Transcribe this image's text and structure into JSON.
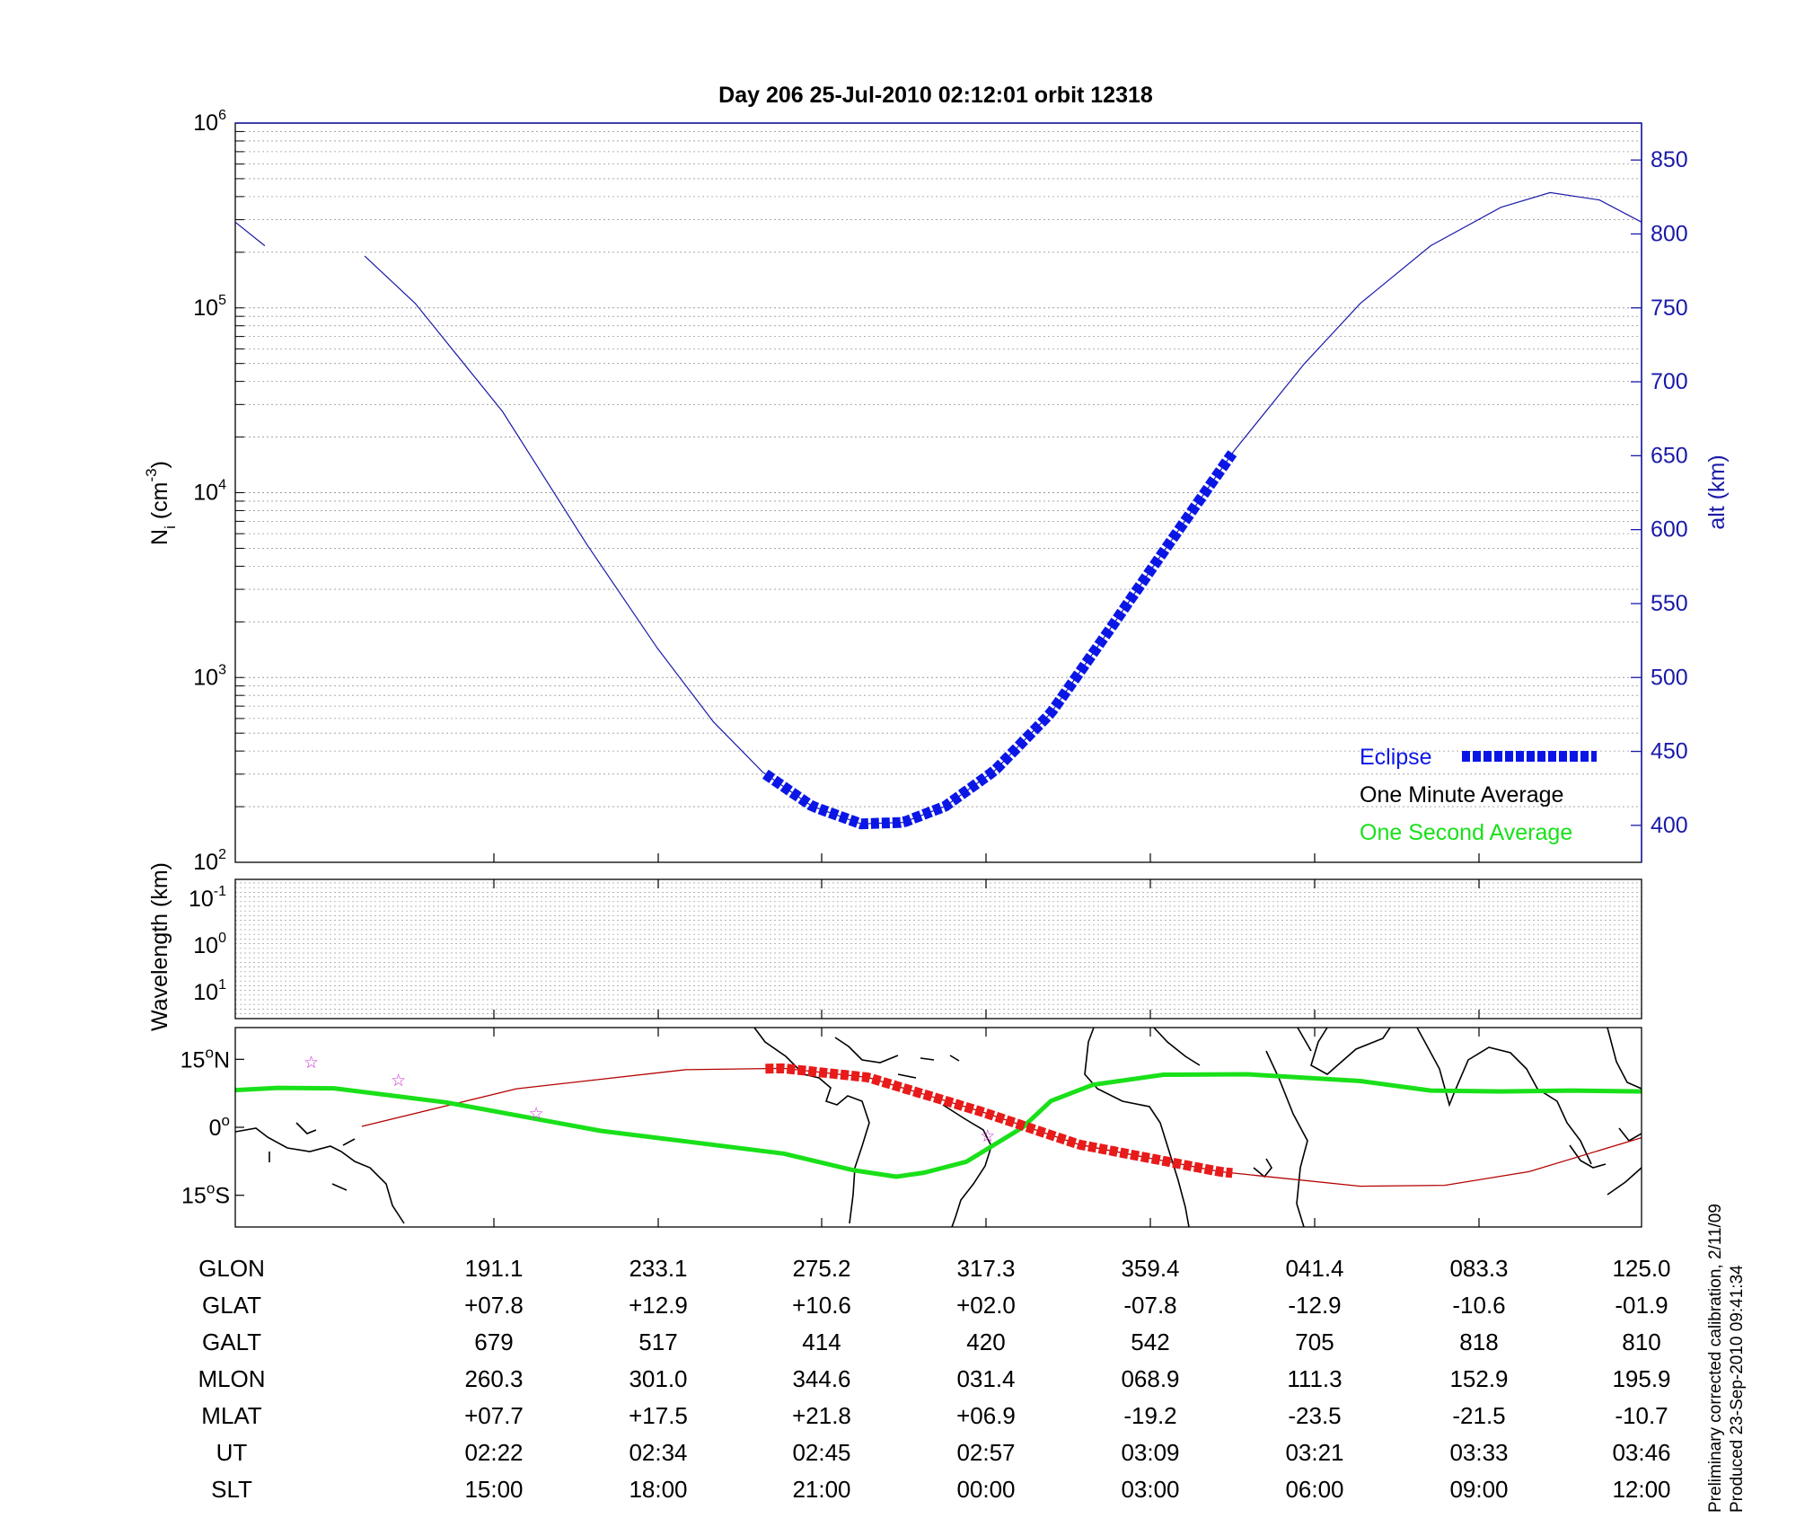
{
  "title": "Day 206  25-Jul-2010 02:12:01   orbit 12318",
  "colors": {
    "altitude": "#1a1aa8",
    "eclipse": "#0a16e6",
    "one_second": "#19e019",
    "orbit_track": "#b40000",
    "eclipse_track": "#e81a1a",
    "stars": "#cc33cc",
    "grid": "#9a9a9a"
  },
  "chart_data": [
    {
      "type": "line",
      "panel": "density",
      "ylabel": {
        "base": "N",
        "sub": "i",
        "unit": " (cm",
        "exp": "-3",
        "close": ")"
      },
      "yscale": "log",
      "ylim": [
        100,
        1000000
      ],
      "yticks": [
        {
          "base": "10",
          "exp": "2"
        },
        {
          "base": "10",
          "exp": "3"
        },
        {
          "base": "10",
          "exp": "4"
        },
        {
          "base": "10",
          "exp": "5"
        },
        {
          "base": "10",
          "exp": "6"
        }
      ],
      "right_axis": {
        "label": "alt (km)",
        "ylim": [
          375,
          875
        ],
        "ticks": [
          "400",
          "450",
          "500",
          "550",
          "600",
          "650",
          "700",
          "750",
          "800",
          "850"
        ]
      },
      "x": {
        "min": 0,
        "max": 1
      },
      "series": [
        {
          "name": "altitude",
          "style": "thin line",
          "points": [
            [
              0.0,
              808
            ],
            [
              0.021,
              792
            ],
            [
              0.092,
              785
            ],
            [
              0.128,
              753
            ],
            [
              0.19,
              680
            ],
            [
              0.25,
              590
            ],
            [
              0.3,
              520
            ],
            [
              0.34,
              470
            ],
            [
              0.375,
              436
            ],
            [
              0.41,
              413
            ],
            [
              0.445,
              401
            ],
            [
              0.475,
              402
            ],
            [
              0.505,
              413
            ],
            [
              0.54,
              437
            ],
            [
              0.58,
              476
            ],
            [
              0.62,
              530
            ],
            [
              0.66,
              585
            ],
            [
              0.71,
              653
            ],
            [
              0.76,
              712
            ],
            [
              0.8,
              753
            ],
            [
              0.85,
              792
            ],
            [
              0.9,
              818
            ],
            [
              0.935,
              828
            ],
            [
              0.97,
              823
            ],
            [
              1.0,
              808
            ]
          ]
        },
        {
          "name": "Eclipse",
          "style": "thick dashed",
          "x_range": [
            0.377,
            0.709
          ]
        },
        {
          "name": "One Minute Average",
          "values": []
        },
        {
          "name": "One Second Average",
          "values": []
        }
      ],
      "legend": {
        "position": "bottom-right",
        "entries": [
          "Eclipse",
          "One Minute Average",
          "One Second Average"
        ]
      }
    },
    {
      "type": "line",
      "panel": "wavelength",
      "ylabel": "Wavelength (km)",
      "yscale": "log",
      "yticks": [
        {
          "base": "10",
          "exp": "-1"
        },
        {
          "base": "10",
          "exp": "0"
        },
        {
          "base": "10",
          "exp": "1"
        }
      ],
      "series": []
    },
    {
      "type": "line",
      "panel": "map",
      "lat_range": [
        -22,
        22
      ],
      "yticks": [
        {
          "deg": "15",
          "hem": "N"
        },
        {
          "deg": "0",
          "hem": ""
        },
        {
          "deg": "15",
          "hem": "S"
        }
      ],
      "series": [
        {
          "name": "orbit_track",
          "points": [
            [
              0.09,
              0.2
            ],
            [
              0.2,
              8.5
            ],
            [
              0.32,
              12.7
            ],
            [
              0.39,
              13.0
            ],
            [
              0.45,
              11.0
            ],
            [
              0.53,
              3.5
            ],
            [
              0.6,
              -3.8
            ],
            [
              0.7,
              -9.8
            ],
            [
              0.8,
              -13.0
            ],
            [
              0.86,
              -12.8
            ],
            [
              0.92,
              -9.8
            ],
            [
              1.0,
              -2.3
            ]
          ]
        },
        {
          "name": "eclipse_track",
          "style": "thick dashed",
          "x_range": [
            0.377,
            0.709
          ]
        },
        {
          "name": "One Second Average",
          "points": [
            [
              0.0,
              8.2
            ],
            [
              0.03,
              8.7
            ],
            [
              0.07,
              8.6
            ],
            [
              0.15,
              5.5
            ],
            [
              0.26,
              -0.8
            ],
            [
              0.39,
              -5.8
            ],
            [
              0.44,
              -9.5
            ],
            [
              0.47,
              -10.9
            ],
            [
              0.49,
              -10.0
            ],
            [
              0.52,
              -7.6
            ],
            [
              0.56,
              0.0
            ],
            [
              0.58,
              5.8
            ],
            [
              0.61,
              9.4
            ],
            [
              0.66,
              11.6
            ],
            [
              0.72,
              11.7
            ],
            [
              0.8,
              10.2
            ],
            [
              0.85,
              8.1
            ],
            [
              0.9,
              7.9
            ],
            [
              0.95,
              8.1
            ],
            [
              1.0,
              7.9
            ]
          ]
        }
      ],
      "stars": [
        [
          0.054,
          14.5
        ],
        [
          0.116,
          10.5
        ],
        [
          0.214,
          3.2
        ],
        [
          0.535,
          -1.8
        ]
      ]
    }
  ],
  "table": {
    "row_labels": [
      "GLON",
      "GLAT",
      "GALT",
      "MLON",
      "MLAT",
      "UT",
      "SLT"
    ],
    "columns": [
      [
        "191.1",
        "+07.8",
        "679",
        "260.3",
        "+07.7",
        "02:22",
        "15:00"
      ],
      [
        "233.1",
        "+12.9",
        "517",
        "301.0",
        "+17.5",
        "02:34",
        "18:00"
      ],
      [
        "275.2",
        "+10.6",
        "414",
        "344.6",
        "+21.8",
        "02:45",
        "21:00"
      ],
      [
        "317.3",
        "+02.0",
        "420",
        "031.4",
        "+06.9",
        "02:57",
        "00:00"
      ],
      [
        "359.4",
        "-07.8",
        "542",
        "068.9",
        "-19.2",
        "03:09",
        "03:00"
      ],
      [
        "041.4",
        "-12.9",
        "705",
        "111.3",
        "-23.5",
        "03:21",
        "06:00"
      ],
      [
        "083.3",
        "-10.6",
        "818",
        "152.9",
        "-21.5",
        "03:33",
        "09:00"
      ],
      [
        "125.0",
        "-01.9",
        "810",
        "195.9",
        "-10.7",
        "03:46",
        "12:00"
      ]
    ]
  },
  "footnotes": [
    "Preliminary corrected calibration, 2/11/09",
    "Produced 23-Sep-2010 09:41:34"
  ]
}
